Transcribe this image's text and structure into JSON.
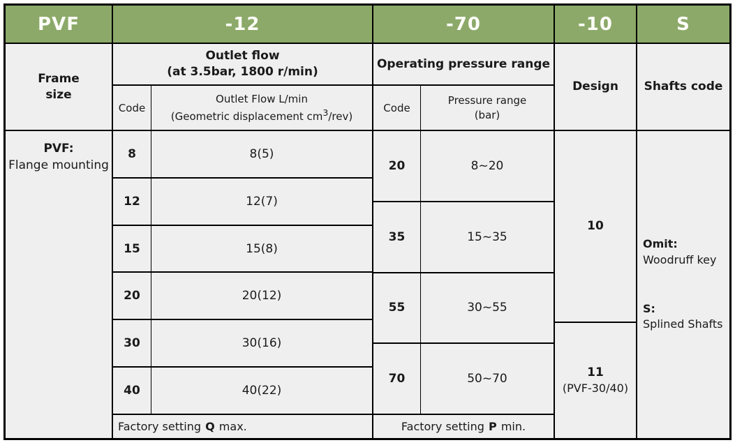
{
  "colors": {
    "header_green": "#8CA969",
    "cell_bg": "#EFEFEF",
    "border_color": "#000000",
    "header_text": "#FDFDF8",
    "text_color": "#1A1A1A"
  },
  "model_code": {
    "frame": "PVF",
    "flow": "-12",
    "pressure": "-70",
    "design": "-10",
    "shafts": "S"
  },
  "frame": {
    "title_line1": "Frame",
    "title_line2": "size",
    "body_code": "PVF:",
    "body_label": "Flange mounting"
  },
  "flow": {
    "group_title_line1": "Outlet flow",
    "group_title_line2": "(at 3.5bar, 1800 r/min)",
    "code_header": "Code",
    "value_header_line1": "Outlet Flow L/min",
    "value_header_line2_pre": "(Geometric displacement cm",
    "value_header_sup": "3",
    "value_header_line2_post": "/rev)",
    "rows": [
      {
        "code": "8",
        "value": "8(5)"
      },
      {
        "code": "12",
        "value": "12(7)"
      },
      {
        "code": "15",
        "value": "15(8)"
      },
      {
        "code": "20",
        "value": "20(12)"
      },
      {
        "code": "30",
        "value": "30(16)"
      },
      {
        "code": "40",
        "value": "40(22)"
      }
    ],
    "factory": {
      "prefix": "Factory setting",
      "bold": "Q",
      "suffix": "max."
    }
  },
  "pressure": {
    "group_title": "Operating pressure range",
    "code_header": "Code",
    "range_header_line1": "Pressure range",
    "range_header_line2": "(bar)",
    "rows": [
      {
        "code": "20",
        "range": "8~20"
      },
      {
        "code": "35",
        "range": "15~35"
      },
      {
        "code": "55",
        "range": "30~55"
      },
      {
        "code": "70",
        "range": "50~70"
      }
    ],
    "factory": {
      "prefix": "Factory setting",
      "bold": "P",
      "suffix": "min."
    }
  },
  "design": {
    "title": "Design",
    "option_10": {
      "code": "10"
    },
    "option_11": {
      "code": "11",
      "note": "(PVF-30/40)"
    }
  },
  "shafts": {
    "title": "Shafts code",
    "omit": {
      "code": "Omit:",
      "label": "Woodruff key"
    },
    "splined": {
      "code": "S:",
      "label": "Splined Shafts"
    }
  }
}
